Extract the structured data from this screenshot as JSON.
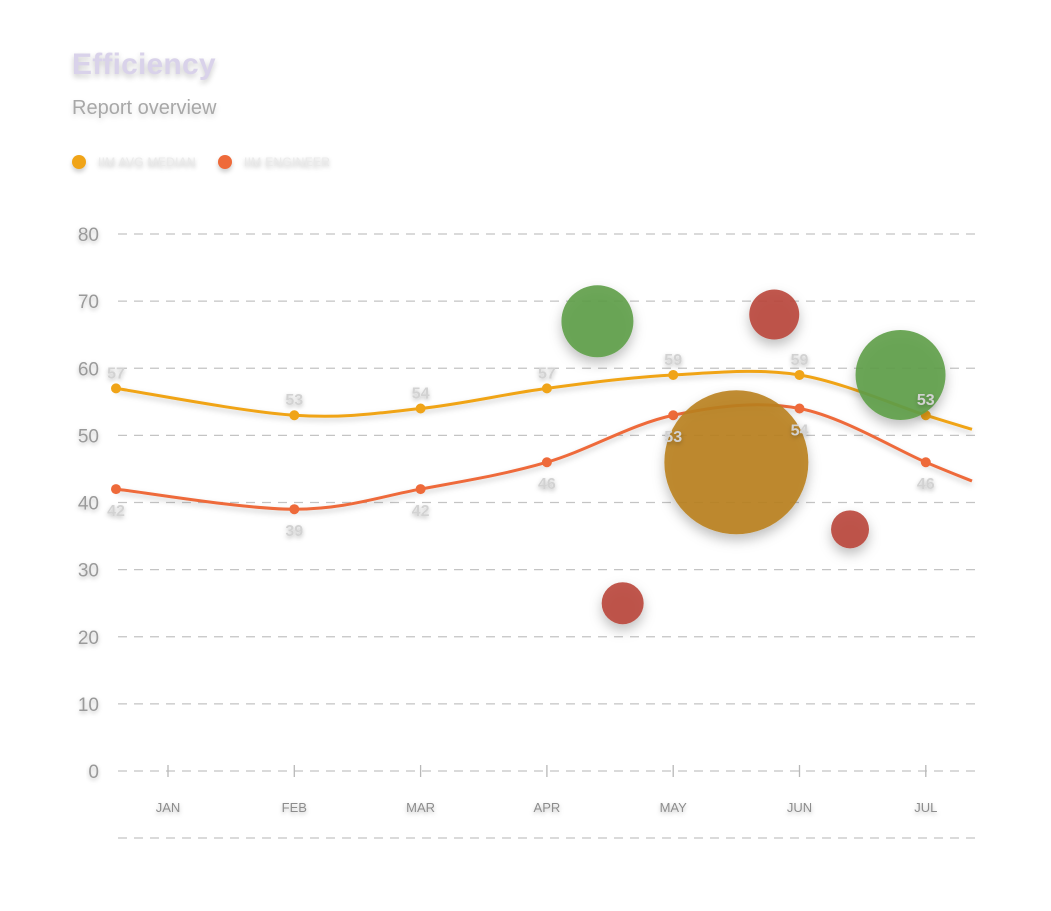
{
  "chart_data": {
    "type": "line",
    "title": "Efficiency",
    "subtitle": "Report overview",
    "categories": [
      "JAN",
      "FEB",
      "MAR",
      "APR",
      "MAY",
      "JUN",
      "JUL"
    ],
    "ylim": [
      0,
      80
    ],
    "yticks": [
      0,
      10,
      20,
      30,
      40,
      50,
      60,
      70,
      80
    ],
    "grid": true,
    "legend_position": "top-left",
    "series": [
      {
        "name": "IIM AVG MEDIAN",
        "color": "#f0a418",
        "values": [
          57,
          53,
          54,
          57,
          59,
          59,
          53
        ],
        "labels": [
          "57",
          "53",
          "54",
          "57",
          "59",
          "59",
          "53"
        ]
      },
      {
        "name": "IIM ENGINEER",
        "color": "#ee6a3a",
        "values": [
          42,
          39,
          42,
          46,
          53,
          54,
          46
        ],
        "labels": [
          "42",
          "39",
          "42",
          "46",
          "53",
          "54",
          "46"
        ]
      }
    ],
    "bubbles": [
      {
        "x": 4.4,
        "y": 67,
        "r": 36,
        "color": "#5e9e48"
      },
      {
        "x": 5.8,
        "y": 68,
        "r": 25,
        "color": "#b9473b"
      },
      {
        "x": 6.8,
        "y": 59,
        "r": 45,
        "color": "#5e9e48"
      },
      {
        "x": 5.5,
        "y": 46,
        "r": 72,
        "color": "#b9811e"
      },
      {
        "x": 6.4,
        "y": 36,
        "r": 19,
        "color": "#b9473b"
      },
      {
        "x": 4.6,
        "y": 25,
        "r": 21,
        "color": "#b9473b"
      }
    ]
  }
}
